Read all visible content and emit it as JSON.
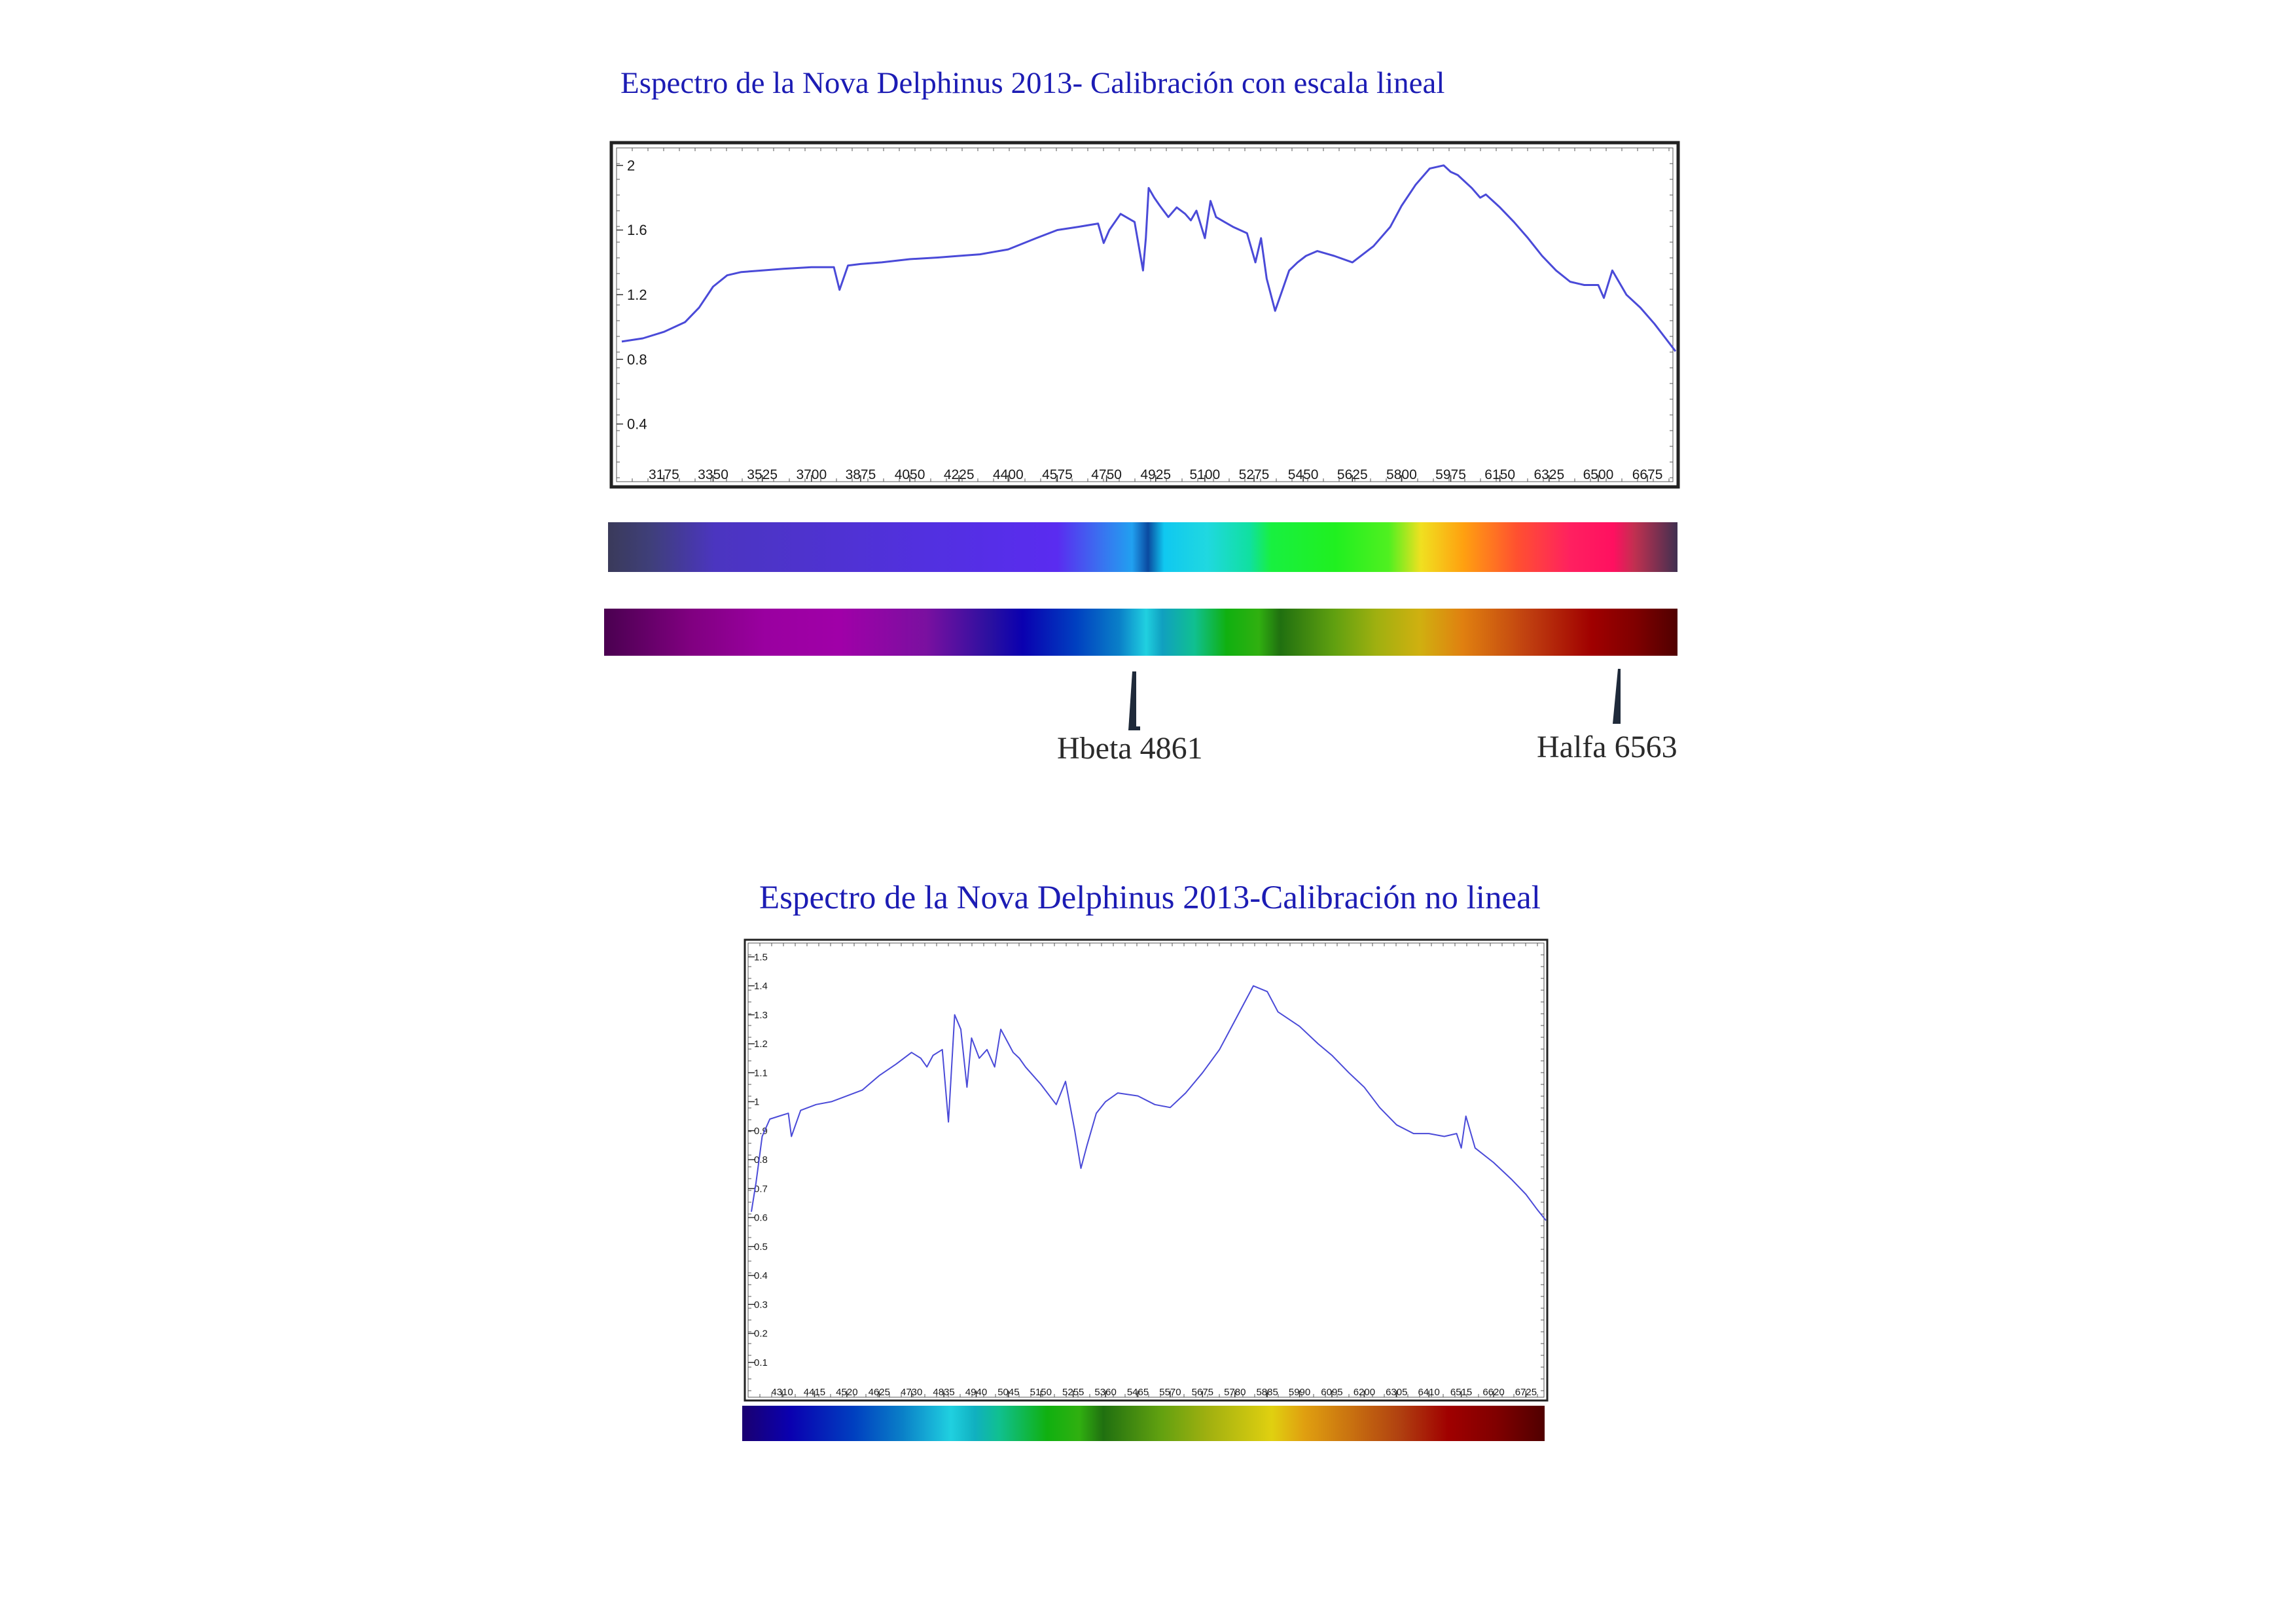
{
  "charts": {
    "linear": {
      "title": "Espectro de la Nova Delphinus 2013- Calibración con escala lineal"
    },
    "nonlinear": {
      "title": "Espectro de la Nova Delphinus 2013-Calibración no lineal"
    }
  },
  "markers": {
    "hbeta": "Hbeta 4861",
    "halfa": "Halfa 6563"
  },
  "colors": {
    "title": "#1c1cb4",
    "curve": "#4a4ad8",
    "frame": "#222222"
  },
  "chart_data": [
    {
      "type": "line",
      "title": "Espectro de la Nova Delphinus 2013- Calibración con escala lineal",
      "xlabel": "",
      "ylabel": "",
      "xlim": [
        3025,
        6775
      ],
      "ylim": [
        0.1,
        2.1
      ],
      "x_ticks": [
        "3175",
        "3350",
        "3525",
        "3700",
        "3875",
        "4050",
        "4225",
        "4400",
        "4575",
        "4750",
        "4925",
        "5100",
        "5275",
        "5450",
        "5625",
        "5800",
        "5975",
        "6150",
        "6325",
        "6500",
        "6675"
      ],
      "y_ticks": [
        "2",
        "1.6",
        "1.2",
        "0.8",
        "0.4"
      ],
      "grid": false,
      "series": [
        {
          "x": [
            3025,
            3100,
            3175,
            3250,
            3300,
            3350,
            3400,
            3450,
            3525,
            3600,
            3700,
            3780,
            3800,
            3830,
            3875,
            3950,
            4050,
            4150,
            4225,
            4300,
            4400,
            4500,
            4575,
            4650,
            4720,
            4740,
            4760,
            4800,
            4850,
            4880,
            4890,
            4900,
            4920,
            4940,
            4970,
            5000,
            5030,
            5050,
            5070,
            5100,
            5120,
            5140,
            5170,
            5200,
            5250,
            5280,
            5300,
            5320,
            5350,
            5380,
            5400,
            5430,
            5460,
            5500,
            5560,
            5625,
            5700,
            5760,
            5800,
            5850,
            5900,
            5950,
            5975,
            6000,
            6050,
            6080,
            6100,
            6150,
            6200,
            6250,
            6300,
            6350,
            6400,
            6450,
            6500,
            6520,
            6550,
            6600,
            6650,
            6700,
            6775
          ],
          "y": [
            0.91,
            0.93,
            0.97,
            1.03,
            1.12,
            1.25,
            1.32,
            1.34,
            1.35,
            1.36,
            1.37,
            1.37,
            1.23,
            1.38,
            1.39,
            1.4,
            1.42,
            1.43,
            1.44,
            1.45,
            1.48,
            1.55,
            1.6,
            1.62,
            1.64,
            1.52,
            1.6,
            1.7,
            1.65,
            1.35,
            1.55,
            1.86,
            1.8,
            1.75,
            1.68,
            1.74,
            1.7,
            1.66,
            1.72,
            1.55,
            1.78,
            1.68,
            1.65,
            1.62,
            1.58,
            1.4,
            1.55,
            1.3,
            1.1,
            1.25,
            1.35,
            1.4,
            1.44,
            1.47,
            1.44,
            1.4,
            1.5,
            1.62,
            1.75,
            1.88,
            1.98,
            2.0,
            1.96,
            1.94,
            1.86,
            1.8,
            1.82,
            1.74,
            1.65,
            1.55,
            1.44,
            1.35,
            1.28,
            1.26,
            1.26,
            1.18,
            1.35,
            1.2,
            1.12,
            1.02,
            0.85
          ]
        }
      ]
    },
    {
      "type": "line",
      "title": "Espectro de la Nova Delphinus 2013-Calibración no lineal",
      "xlabel": "",
      "ylabel": "",
      "xlim": [
        4210,
        6790
      ],
      "ylim": [
        0,
        1.55
      ],
      "x_ticks": [
        "4310",
        "4415",
        "4520",
        "4625",
        "4730",
        "4835",
        "4940",
        "5045",
        "5150",
        "5255",
        "5360",
        "5465",
        "5570",
        "5675",
        "5780",
        "5885",
        "5990",
        "6095",
        "6200",
        "6305",
        "6410",
        "6515",
        "6620",
        "6725"
      ],
      "y_ticks": [
        "1.5",
        "1.4",
        "1.3",
        "1.2",
        "1.1",
        "1",
        "0.9",
        "0.8",
        "0.7",
        "0.6",
        "0.5",
        "0.4",
        "0.3",
        "0.2",
        "0.1"
      ],
      "grid": false,
      "series": [
        {
          "x": [
            4210,
            4225,
            4245,
            4270,
            4300,
            4330,
            4340,
            4370,
            4420,
            4470,
            4520,
            4570,
            4625,
            4680,
            4730,
            4760,
            4780,
            4800,
            4830,
            4850,
            4870,
            4890,
            4910,
            4925,
            4950,
            4975,
            5000,
            5020,
            5045,
            5060,
            5080,
            5100,
            5150,
            5200,
            5230,
            5260,
            5280,
            5300,
            5330,
            5360,
            5400,
            5465,
            5520,
            5570,
            5620,
            5675,
            5730,
            5780,
            5810,
            5840,
            5885,
            5920,
            5990,
            6050,
            6095,
            6150,
            6200,
            6250,
            6305,
            6360,
            6410,
            6460,
            6500,
            6515,
            6530,
            6560,
            6620,
            6680,
            6725,
            6760,
            6790
          ],
          "y": [
            0.62,
            0.72,
            0.88,
            0.94,
            0.95,
            0.96,
            0.88,
            0.97,
            0.99,
            1.0,
            1.02,
            1.04,
            1.09,
            1.13,
            1.17,
            1.15,
            1.12,
            1.16,
            1.18,
            0.93,
            1.3,
            1.25,
            1.05,
            1.22,
            1.15,
            1.18,
            1.12,
            1.25,
            1.2,
            1.17,
            1.15,
            1.12,
            1.06,
            0.99,
            1.07,
            0.9,
            0.77,
            0.85,
            0.96,
            1.0,
            1.03,
            1.02,
            0.99,
            0.98,
            1.03,
            1.1,
            1.18,
            1.28,
            1.34,
            1.4,
            1.38,
            1.31,
            1.26,
            1.2,
            1.16,
            1.1,
            1.05,
            0.98,
            0.92,
            0.89,
            0.89,
            0.88,
            0.89,
            0.84,
            0.95,
            0.84,
            0.79,
            0.73,
            0.68,
            0.63,
            0.59
          ]
        }
      ]
    }
  ]
}
